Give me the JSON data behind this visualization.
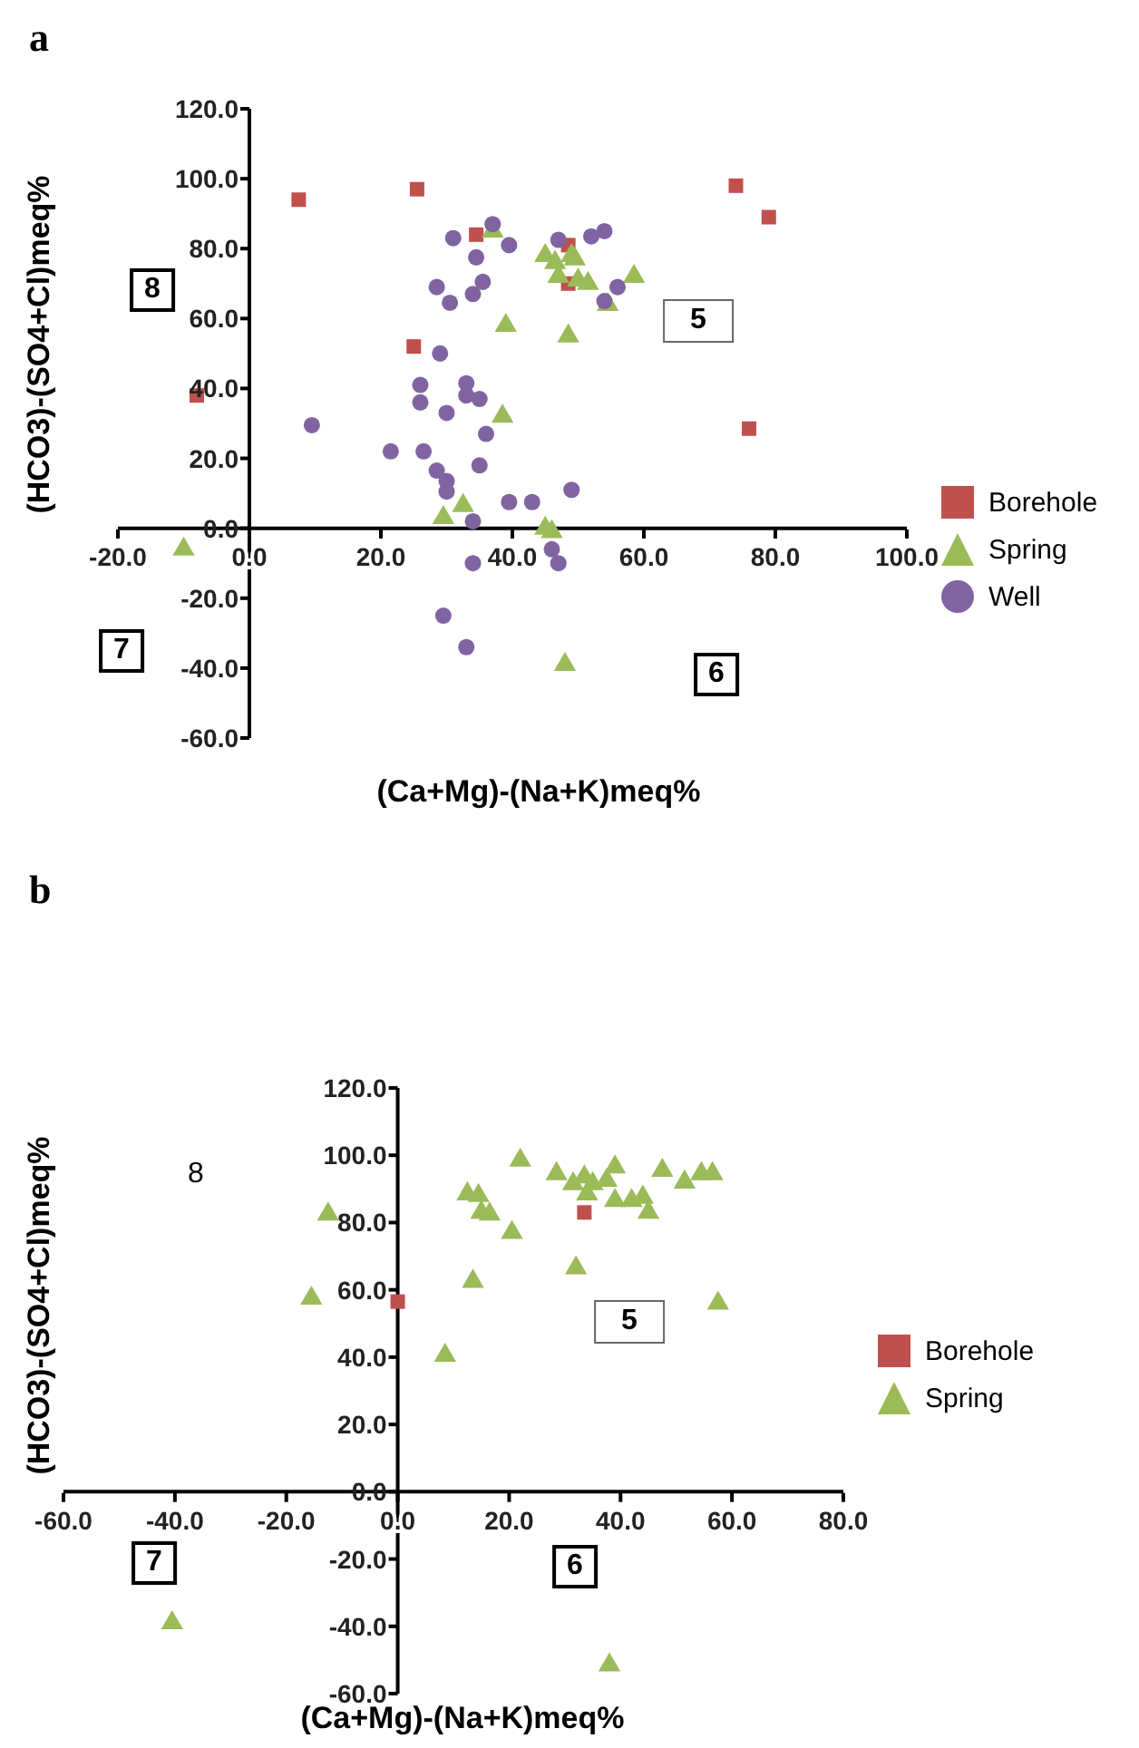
{
  "chart_data": [
    {
      "type": "scatter",
      "title": "a",
      "xlabel": "(Ca+Mg)-(Na+K)meq%",
      "ylabel": "(HCO3)-(SO4+Cl)meq%",
      "xlim": [
        -20,
        100
      ],
      "xticks": [
        {
          "value": -20,
          "label": "-20.0"
        },
        {
          "value": 0,
          "label": "0.0"
        },
        {
          "value": 20,
          "label": "20.0"
        },
        {
          "value": 40,
          "label": "40.0"
        },
        {
          "value": 60,
          "label": "60.0"
        },
        {
          "value": 80,
          "label": "80.0"
        },
        {
          "value": 100,
          "label": "100.0"
        }
      ],
      "ylim": [
        -60,
        120
      ],
      "yticks": [
        {
          "value": -60,
          "label": "-60.0"
        },
        {
          "value": -40,
          "label": "-40.0"
        },
        {
          "value": -20,
          "label": "-20.0"
        },
        {
          "value": 0,
          "label": "0.0"
        },
        {
          "value": 20,
          "label": "20.0"
        },
        {
          "value": 40,
          "label": "40.0"
        },
        {
          "value": 60,
          "label": "60.0"
        },
        {
          "value": 80,
          "label": "80.0"
        },
        {
          "value": 100,
          "label": "100.0"
        },
        {
          "value": 120,
          "label": "120.0"
        }
      ],
      "legend": "right",
      "annotations": [
        "8",
        "5",
        "7",
        "6"
      ],
      "series": [
        {
          "name": "Borehole",
          "color": "#c0504d",
          "marker": "square",
          "x": [
            7.5,
            25.5,
            34.5,
            48.5,
            48.5,
            25,
            -8,
            74,
            79,
            76
          ],
          "values": [
            94,
            97,
            84,
            81,
            70,
            52,
            38,
            98,
            89,
            28.5
          ]
        },
        {
          "name": "Spring",
          "color": "#9bbb59",
          "marker": "triangle",
          "x": [
            -10,
            37,
            45,
            46.5,
            47,
            49,
            49.5,
            50,
            51.5,
            58.5,
            54.5,
            39,
            48.5,
            38.5,
            32.5,
            29.5,
            45,
            46,
            48
          ],
          "values": [
            -6,
            85,
            78,
            76,
            72,
            78,
            77,
            71,
            70,
            72,
            64,
            58,
            55,
            32,
            6.5,
            3,
            0,
            -1,
            -39
          ]
        },
        {
          "name": "Well",
          "color": "#8064a2",
          "marker": "circle",
          "x": [
            31,
            37,
            34.5,
            39.5,
            47,
            52,
            54,
            28.5,
            30.5,
            34,
            35.5,
            56,
            54,
            29,
            26,
            26,
            30,
            33,
            33,
            35,
            9.5,
            36,
            21.5,
            26.5,
            28.5,
            30,
            30,
            35,
            39.5,
            43,
            49,
            34,
            46,
            47,
            34,
            29.5,
            33
          ],
          "values": [
            83,
            87,
            77.5,
            81,
            82.5,
            83.5,
            85,
            69,
            64.5,
            67,
            70.5,
            69,
            65,
            50,
            41,
            36,
            33,
            41.5,
            38,
            37,
            29.5,
            27,
            22,
            22,
            16.5,
            13.5,
            10.5,
            18,
            7.5,
            7.5,
            11,
            2,
            -6,
            -10,
            -10,
            -25,
            -34
          ]
        }
      ]
    },
    {
      "type": "scatter",
      "title": "b",
      "xlabel": "(Ca+Mg)-(Na+K)meq%",
      "ylabel": "(HCO3)-(SO4+Cl)meq%",
      "xlim": [
        -60,
        80
      ],
      "xticks": [
        {
          "value": -60,
          "label": "-60.0"
        },
        {
          "value": -40,
          "label": "-40.0"
        },
        {
          "value": -20,
          "label": "-20.0"
        },
        {
          "value": 0,
          "label": "0.0"
        },
        {
          "value": 20,
          "label": "20.0"
        },
        {
          "value": 40,
          "label": "40.0"
        },
        {
          "value": 60,
          "label": "60.0"
        },
        {
          "value": 80,
          "label": "80.0"
        }
      ],
      "ylim": [
        -60,
        120
      ],
      "yticks": [
        {
          "value": -60,
          "label": "-60.0"
        },
        {
          "value": -40,
          "label": "-40.0"
        },
        {
          "value": -20,
          "label": "-20.0"
        },
        {
          "value": 0,
          "label": "0.0"
        },
        {
          "value": 20,
          "label": "20.0"
        },
        {
          "value": 40,
          "label": "40.0"
        },
        {
          "value": 60,
          "label": "60.0"
        },
        {
          "value": 80,
          "label": "80.0"
        },
        {
          "value": 100,
          "label": "100.0"
        },
        {
          "value": 120,
          "label": "120.0"
        }
      ],
      "legend": "right",
      "annotations": [
        "8",
        "5",
        "7",
        "6"
      ],
      "series": [
        {
          "name": "Borehole",
          "color": "#c0504d",
          "marker": "square",
          "x": [
            0,
            33.5
          ],
          "values": [
            56.5,
            83
          ]
        },
        {
          "name": "Spring",
          "color": "#9bbb59",
          "marker": "triangle",
          "x": [
            -15.5,
            -12.5,
            -40.5,
            8.5,
            13.5,
            12.5,
            14.5,
            15,
            16.5,
            20.5,
            22,
            28.5,
            32,
            31.5,
            33.5,
            35,
            34,
            37.5,
            39,
            39,
            42,
            44,
            45,
            47.5,
            51.5,
            54.5,
            56.5,
            57.5,
            38
          ],
          "values": [
            57.5,
            82.5,
            -39,
            40.5,
            62.5,
            88.5,
            88,
            83,
            82.5,
            77,
            98.5,
            94.5,
            66.5,
            91.5,
            93.5,
            91.5,
            88.5,
            92.5,
            96.5,
            86.5,
            86.5,
            87.5,
            83,
            95.5,
            92,
            94.5,
            94.5,
            56,
            -51.5
          ]
        }
      ]
    }
  ]
}
